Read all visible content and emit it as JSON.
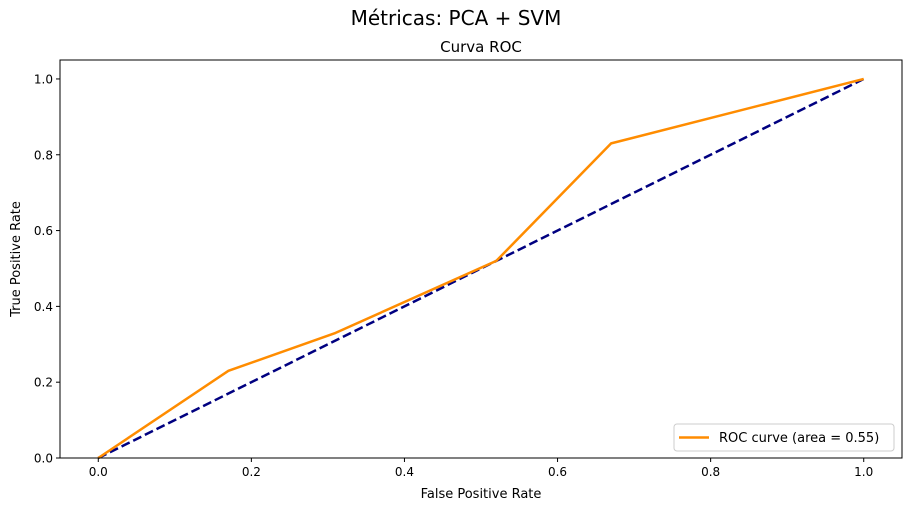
{
  "figure": {
    "suptitle": "Métricas: PCA + SVM"
  },
  "chart_data": {
    "type": "line",
    "title": "Curva ROC",
    "xlabel": "False Positive Rate",
    "ylabel": "True Positive Rate",
    "xlim": [
      -0.05,
      1.05
    ],
    "ylim": [
      0.0,
      1.05
    ],
    "xticks": [
      0.0,
      0.2,
      0.4,
      0.6,
      0.8,
      1.0
    ],
    "xtick_labels": [
      "0.0",
      "0.2",
      "0.4",
      "0.6",
      "0.8",
      "1.0"
    ],
    "yticks": [
      0.0,
      0.2,
      0.4,
      0.6,
      0.8,
      1.0
    ],
    "ytick_labels": [
      "0.0",
      "0.2",
      "0.4",
      "0.6",
      "0.8",
      "1.0"
    ],
    "grid": false,
    "legend_position": "lower-right",
    "series": [
      {
        "name": "ROC curve (area = 0.55)",
        "color": "#ff8c00",
        "style": "solid",
        "x": [
          0.0,
          0.17,
          0.31,
          0.52,
          0.67,
          1.0
        ],
        "y": [
          0.0,
          0.23,
          0.33,
          0.52,
          0.83,
          1.0
        ],
        "in_legend": true
      },
      {
        "name": "",
        "color": "#000080",
        "style": "dashed",
        "x": [
          0.0,
          1.0
        ],
        "y": [
          0.0,
          1.0
        ],
        "in_legend": false
      }
    ]
  }
}
